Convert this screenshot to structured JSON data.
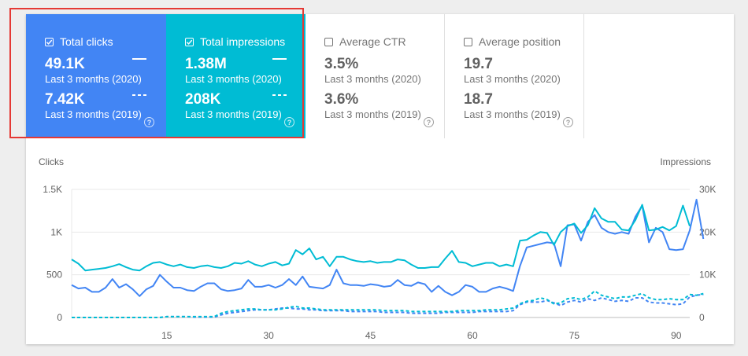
{
  "metrics": {
    "clicks": {
      "label": "Total clicks",
      "checked": true,
      "value_2020": "49.1K",
      "period_2020": "Last 3 months (2020)",
      "value_2019": "7.42K",
      "period_2019": "Last 3 months (2019)",
      "help": "?"
    },
    "impressions": {
      "label": "Total impressions",
      "checked": true,
      "value_2020": "1.38M",
      "period_2020": "Last 3 months (2020)",
      "value_2019": "208K",
      "period_2019": "Last 3 months (2019)",
      "help": "?"
    },
    "ctr": {
      "label": "Average CTR",
      "checked": false,
      "value_2020": "3.5%",
      "period_2020": "Last 3 months (2020)",
      "value_2019": "3.6%",
      "period_2019": "Last 3 months (2019)",
      "help": "?"
    },
    "position": {
      "label": "Average position",
      "checked": false,
      "value_2020": "19.7",
      "period_2020": "Last 3 months (2020)",
      "value_2019": "18.7",
      "period_2019": "Last 3 months (2019)",
      "help": "?"
    }
  },
  "colors": {
    "clicks": "#4285f4",
    "impressions": "#00bcd4",
    "highlight": "#e53935"
  },
  "icons": {
    "checkbox": "checkbox-icon",
    "help": "help-circle-icon"
  },
  "chart_data": {
    "type": "line",
    "ylabel_left": "Clicks",
    "ylabel_right": "Impressions",
    "left_ticks": [
      "0",
      "500",
      "1K",
      "1.5K"
    ],
    "right_ticks": [
      "0",
      "10K",
      "20K",
      "30K"
    ],
    "ylim_left": [
      0,
      1500
    ],
    "ylim_right": [
      0,
      30000
    ],
    "xlim": [
      1,
      92
    ],
    "x_ticks": [
      15,
      30,
      45,
      60,
      75,
      90
    ],
    "grid": true,
    "series": [
      {
        "name": "Total clicks",
        "axis": "left",
        "style": "solid",
        "color": "#4285f4",
        "values": [
          380,
          340,
          350,
          300,
          300,
          350,
          450,
          350,
          390,
          330,
          250,
          330,
          370,
          500,
          420,
          350,
          350,
          320,
          310,
          360,
          400,
          400,
          330,
          310,
          320,
          340,
          440,
          360,
          360,
          380,
          350,
          380,
          450,
          380,
          480,
          360,
          350,
          340,
          380,
          560,
          400,
          380,
          380,
          370,
          390,
          380,
          360,
          370,
          440,
          380,
          370,
          410,
          390,
          300,
          370,
          300,
          260,
          300,
          380,
          360,
          300,
          300,
          340,
          360,
          340,
          310,
          600,
          820,
          840,
          860,
          880,
          870,
          600,
          1080,
          1090,
          900,
          1120,
          1200,
          1050,
          1000,
          980,
          1000,
          980,
          1180,
          1310,
          880,
          1050,
          1000,
          800,
          790,
          800,
          1020,
          1380,
          920
        ]
      },
      {
        "name": "Total impressions",
        "axis": "right",
        "style": "solid",
        "color": "#00bcd4",
        "values": [
          13600,
          12600,
          11000,
          11200,
          11400,
          11600,
          12000,
          12500,
          11800,
          11200,
          11000,
          12000,
          12800,
          13000,
          12400,
          12000,
          12400,
          11800,
          11600,
          12000,
          12200,
          11800,
          11600,
          12000,
          12800,
          12600,
          13200,
          12400,
          12000,
          12600,
          13000,
          12200,
          12600,
          15800,
          14800,
          16200,
          13600,
          14200,
          12000,
          14200,
          14200,
          13600,
          13200,
          13000,
          13200,
          12800,
          13000,
          13000,
          13600,
          13400,
          12400,
          11600,
          11600,
          11800,
          11800,
          13800,
          15600,
          13000,
          12800,
          12000,
          12400,
          12800,
          12800,
          12000,
          12400,
          12000,
          18000,
          18200,
          19200,
          20000,
          19800,
          17000,
          20000,
          21400,
          22000,
          19800,
          21600,
          25600,
          23200,
          22400,
          22400,
          20600,
          20400,
          22800,
          26400,
          20400,
          20600,
          21200,
          20400,
          21400,
          26200,
          21400
        ]
      },
      {
        "name": "Total clicks 2019",
        "axis": "left",
        "style": "dashed",
        "color": "#4285f4",
        "values": [
          0,
          0,
          0,
          0,
          0,
          0,
          0,
          0,
          0,
          0,
          0,
          0,
          0,
          0,
          10,
          10,
          10,
          10,
          5,
          5,
          5,
          5,
          30,
          50,
          60,
          70,
          80,
          90,
          90,
          90,
          100,
          110,
          110,
          100,
          100,
          90,
          90,
          80,
          80,
          80,
          80,
          70,
          70,
          70,
          70,
          70,
          60,
          60,
          60,
          60,
          50,
          50,
          50,
          50,
          50,
          60,
          60,
          60,
          60,
          60,
          70,
          70,
          70,
          70,
          70,
          80,
          150,
          180,
          180,
          180,
          200,
          170,
          140,
          180,
          200,
          180,
          220,
          200,
          230,
          210,
          190,
          200,
          190,
          230,
          230,
          180,
          170,
          170,
          160,
          150,
          160,
          240,
          260,
          270
        ]
      },
      {
        "name": "Total impressions 2019",
        "axis": "right",
        "style": "dashed",
        "color": "#00bcd4",
        "values": [
          0,
          0,
          0,
          0,
          0,
          0,
          0,
          0,
          0,
          0,
          0,
          0,
          0,
          0,
          200,
          200,
          200,
          200,
          200,
          200,
          200,
          200,
          1000,
          1400,
          1600,
          1800,
          2000,
          2000,
          1800,
          1800,
          1800,
          2000,
          2400,
          2600,
          2200,
          2200,
          2000,
          1800,
          1800,
          1800,
          1800,
          1800,
          1800,
          1800,
          1800,
          1800,
          1600,
          1600,
          1600,
          1600,
          1400,
          1400,
          1400,
          1400,
          1400,
          1400,
          1400,
          1600,
          1600,
          1600,
          1600,
          1800,
          1800,
          1800,
          2000,
          2200,
          3200,
          3800,
          4000,
          4600,
          4200,
          3200,
          3400,
          4400,
          4600,
          4200,
          4800,
          6200,
          5200,
          4800,
          4400,
          4800,
          4800,
          5200,
          5600,
          4600,
          4200,
          4200,
          4400,
          4200,
          4200,
          5400,
          5200,
          5600
        ]
      }
    ]
  }
}
